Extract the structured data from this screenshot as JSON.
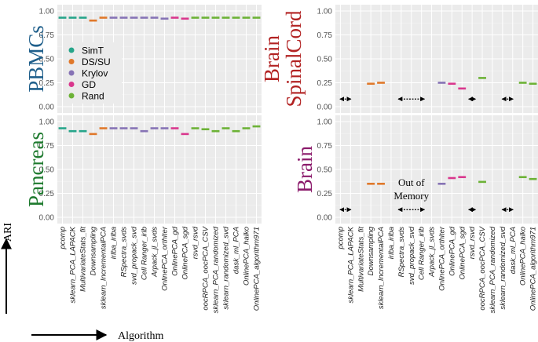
{
  "chart_data": {
    "type": "scatter",
    "title": "",
    "xlabel": "Algorithm",
    "ylabel": "ARI",
    "ylim": [
      0,
      1
    ],
    "yticks": [
      "0.00",
      "0.25",
      "0.50",
      "0.75",
      "1.00"
    ],
    "categories": [
      "pcomp",
      "sklearn_PCA_LAPACK",
      "MultivariateStats_fit",
      "Downsampling",
      "sklearn_IncrementalPCA",
      "irlba_irlba",
      "RSpectra_svds",
      "svd_propack_svd",
      "Cell Ranger_irlb",
      "Arpack_jl_svds",
      "OnlinePCA_orthiter",
      "OnlinePCA_gd",
      "OnlinePCA_sgd",
      "rsvd_rsvd",
      "oocRPCA_oocPCA_CSV",
      "sklearn_PCA_randomized",
      "sklearn_randomized_svd",
      "dask_ml_PCA",
      "OnlinePCA_halko",
      "OnlinePCA_algorithm971"
    ],
    "category_groups": [
      "SimT",
      "SimT",
      "SimT",
      "DS/SU",
      "DS/SU",
      "Krylov",
      "Krylov",
      "Krylov",
      "Krylov",
      "Krylov",
      "Krylov",
      "GD",
      "GD",
      "Rand",
      "Rand",
      "Rand",
      "Rand",
      "Rand",
      "Rand",
      "Rand"
    ],
    "legend": [
      {
        "name": "SimT",
        "color": "#26a58a"
      },
      {
        "name": "DS/SU",
        "color": "#e0782a"
      },
      {
        "name": "Krylov",
        "color": "#8673b5"
      },
      {
        "name": "GD",
        "color": "#d9378d"
      },
      {
        "name": "Rand",
        "color": "#6cb236"
      }
    ],
    "legend_position": "top-left",
    "panels": [
      {
        "name": "PBMCs",
        "color": "#1f5f8b",
        "values": [
          0.93,
          0.93,
          0.93,
          0.9,
          0.93,
          0.93,
          0.93,
          0.93,
          0.93,
          0.93,
          0.92,
          0.93,
          0.92,
          0.93,
          0.93,
          0.93,
          0.93,
          0.93,
          0.93,
          0.93
        ]
      },
      {
        "name": "Brain SpinalCord",
        "color": "#b22222",
        "values": [
          null,
          null,
          null,
          0.24,
          0.25,
          null,
          null,
          null,
          null,
          null,
          0.25,
          0.24,
          0.19,
          null,
          0.3,
          null,
          null,
          null,
          0.25,
          0.24
        ],
        "na_marks": [
          {
            "between": [
              "pcomp",
              "sklearn_PCA_LAPACK"
            ],
            "style": "short"
          },
          {
            "between": [
              "RSpectra_svds",
              "Cell Ranger_irlb"
            ],
            "style": "long"
          },
          {
            "at": "rsvd_rsvd",
            "style": "short"
          },
          {
            "between": [
              "sklearn_randomized_svd",
              "dask_ml_PCA"
            ],
            "style": "short"
          }
        ]
      },
      {
        "name": "Pancreas",
        "color": "#1e7a2e",
        "values": [
          0.93,
          0.9,
          0.9,
          0.87,
          0.93,
          0.93,
          0.93,
          0.93,
          0.9,
          0.93,
          0.93,
          0.93,
          0.87,
          0.93,
          0.92,
          0.9,
          0.93,
          0.9,
          0.93,
          0.95
        ]
      },
      {
        "name": "Brain",
        "color": "#8b1a6b",
        "values": [
          null,
          null,
          null,
          0.35,
          0.35,
          null,
          null,
          null,
          null,
          null,
          0.35,
          0.41,
          0.42,
          null,
          0.37,
          null,
          null,
          null,
          0.42,
          0.4
        ],
        "na_marks": [
          {
            "between": [
              "pcomp",
              "sklearn_PCA_LAPACK"
            ],
            "style": "short"
          },
          {
            "between": [
              "RSpectra_svds",
              "Cell Ranger_irlb"
            ],
            "style": "long"
          },
          {
            "at": "rsvd_rsvd",
            "style": "short"
          },
          {
            "between": [
              "sklearn_randomized_svd",
              "dask_ml_PCA"
            ],
            "style": "short"
          }
        ],
        "annotation": "Out of Memory"
      }
    ]
  }
}
